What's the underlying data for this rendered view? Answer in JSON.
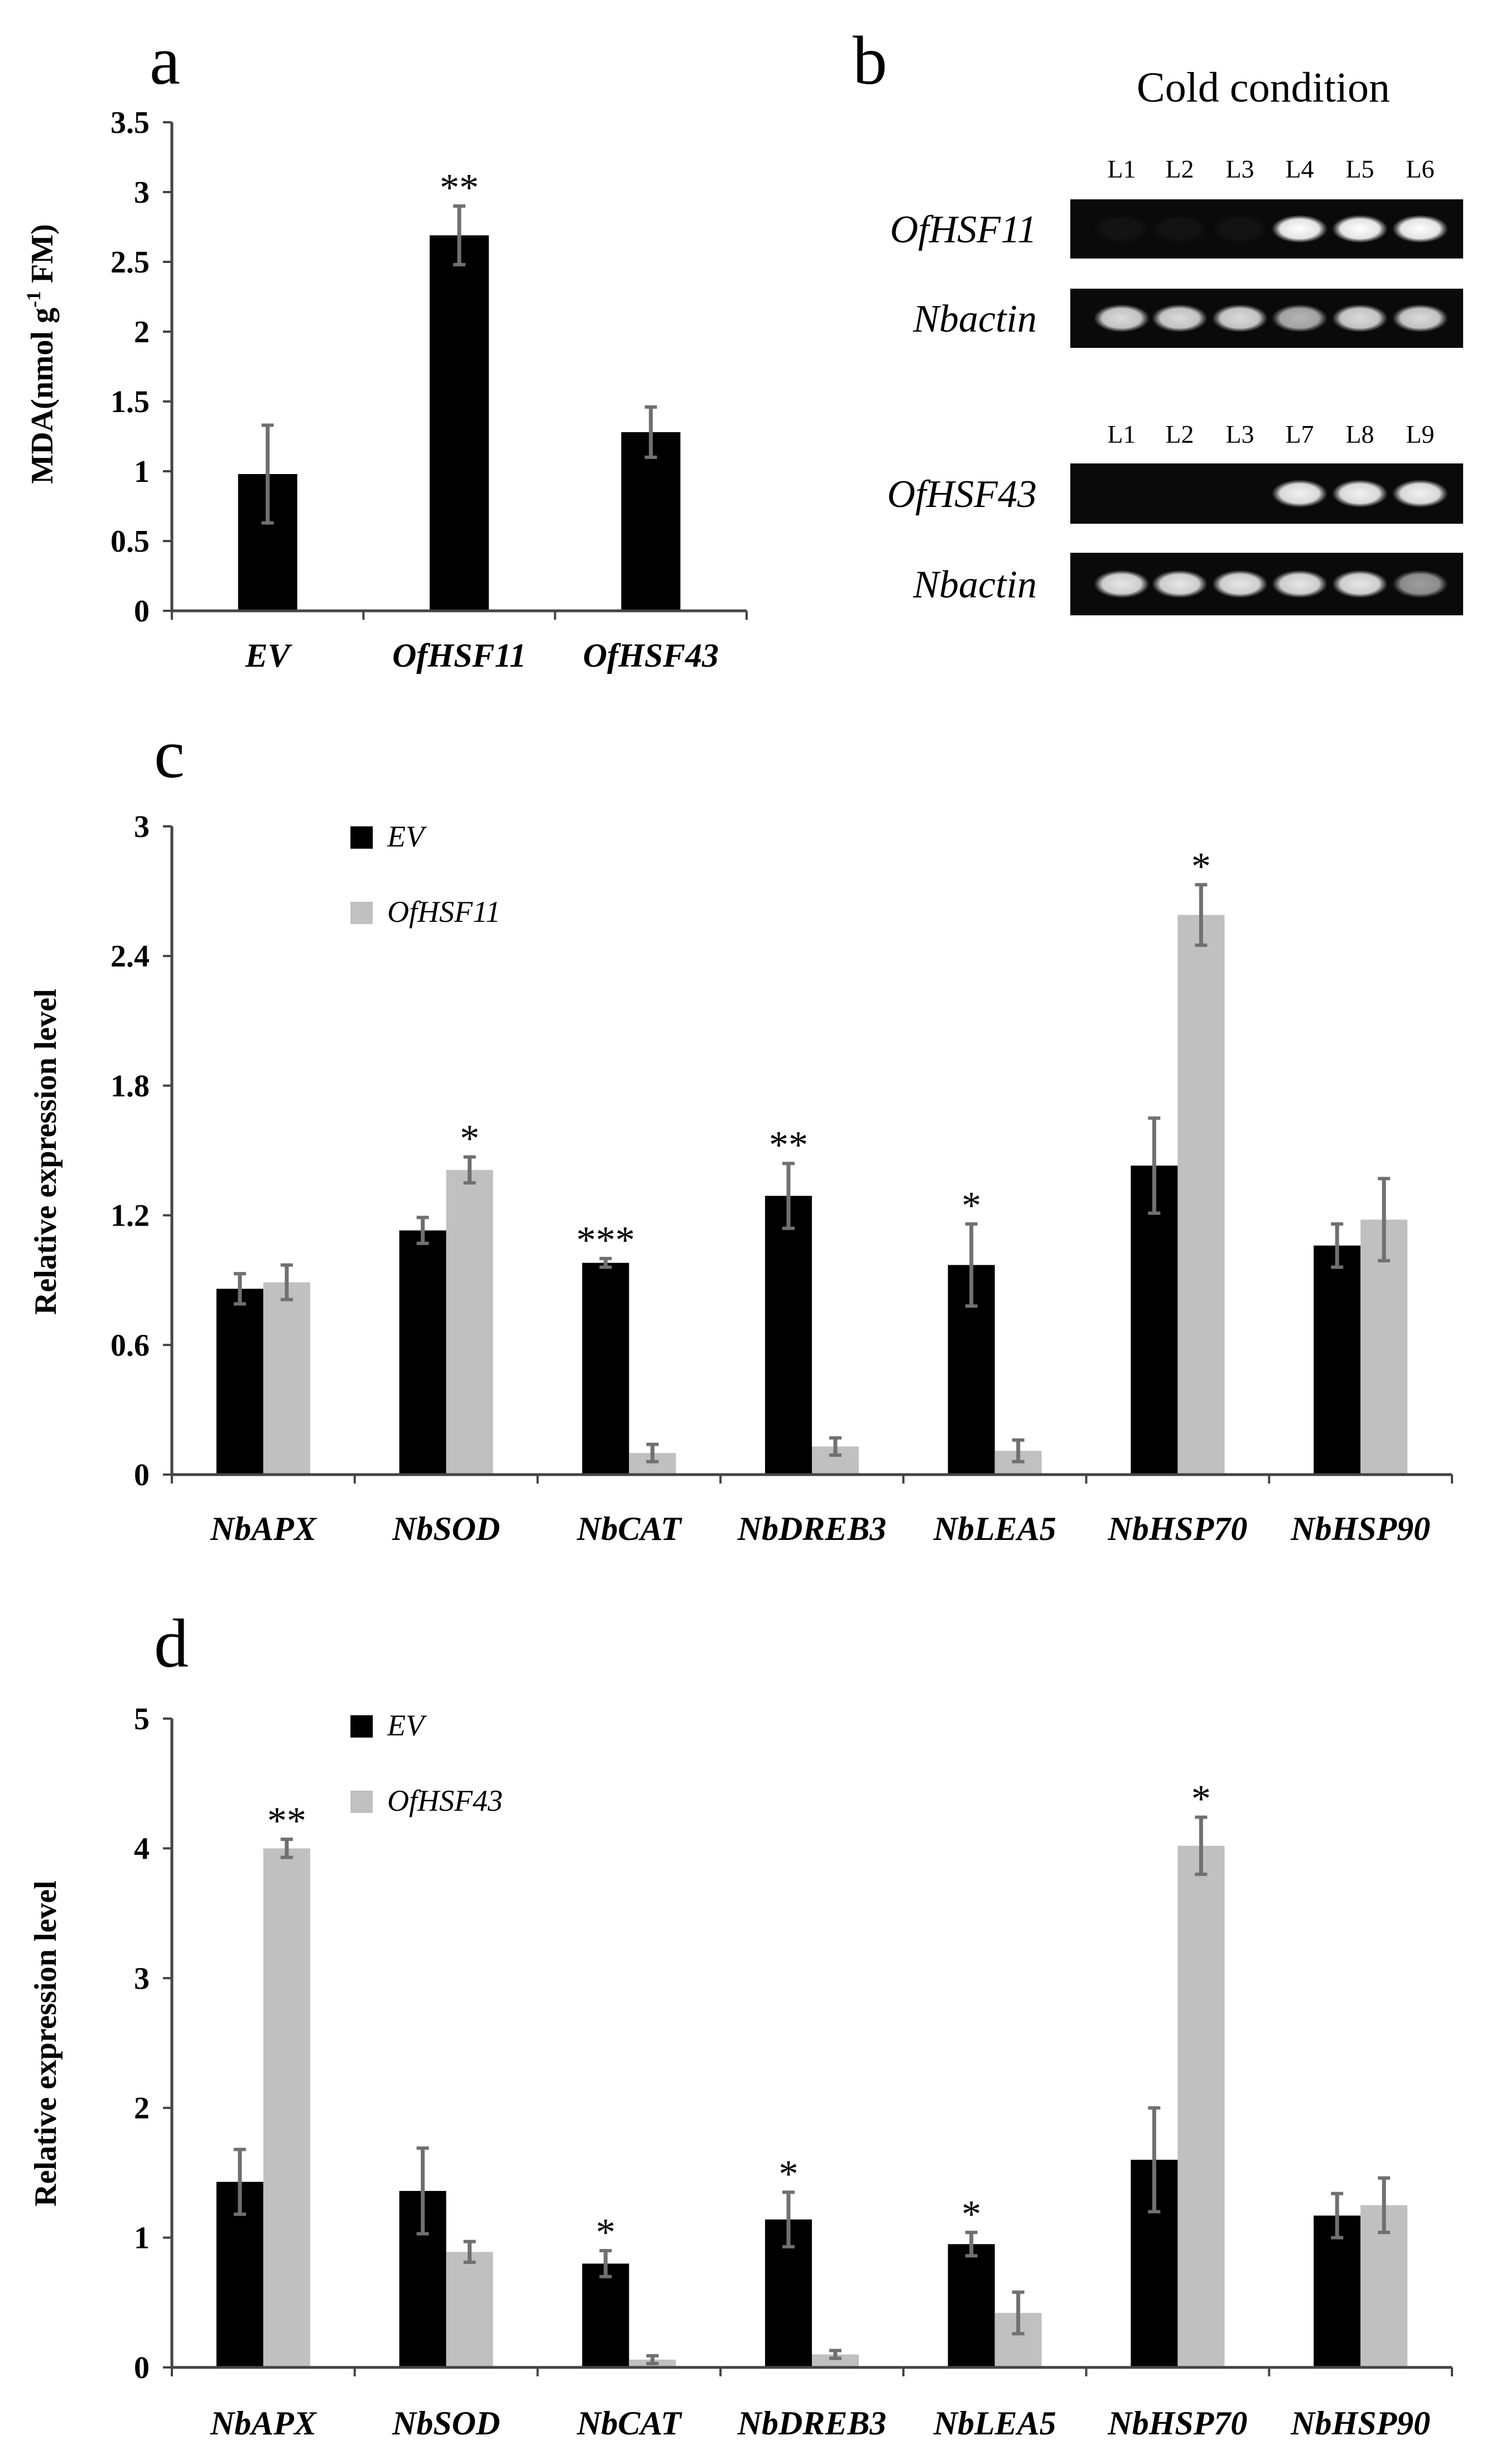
{
  "chart_data": [
    {
      "panel": "a",
      "type": "bar",
      "ylabel": "MDA(nmol g",
      "ylabel_sup": "-1",
      "ylabel_tail": " FM)",
      "ylim": [
        0,
        3.5
      ],
      "yticks": [
        "0",
        "0.5",
        "1",
        "1.5",
        "2",
        "2.5",
        "3",
        "3.5"
      ],
      "categories": [
        "EV",
        "OfHSF11",
        "OfHSF43"
      ],
      "series": [
        {
          "name": "MDA",
          "values": [
            0.98,
            2.69,
            1.28
          ],
          "errors": [
            0.35,
            0.21,
            0.18
          ],
          "significance": [
            "",
            "**",
            ""
          ],
          "color": "#000000"
        }
      ]
    },
    {
      "panel": "b",
      "type": "gel",
      "title": "Cold condition",
      "blocks": [
        {
          "lanes": [
            "L1",
            "L2",
            "L3",
            "L4",
            "L5",
            "L6"
          ],
          "rows": [
            {
              "gene": "OfHSF11",
              "intensities": [
                0.04,
                0.04,
                0.04,
                1.0,
                1.0,
                1.0
              ]
            },
            {
              "gene": "Nbactin",
              "intensities": [
                0.85,
                0.85,
                0.85,
                0.7,
                0.85,
                0.85
              ]
            }
          ]
        },
        {
          "lanes": [
            "L1",
            "L2",
            "L3",
            "L7",
            "L8",
            "L9"
          ],
          "rows": [
            {
              "gene": "OfHSF43",
              "intensities": [
                0.0,
                0.0,
                0.0,
                0.95,
                0.95,
                0.95
              ]
            },
            {
              "gene": "Nbactin",
              "intensities": [
                0.9,
                0.9,
                0.9,
                0.9,
                0.9,
                0.6
              ]
            }
          ]
        }
      ]
    },
    {
      "panel": "c",
      "type": "bar",
      "ylabel": "Relative expression level",
      "ylim": [
        0,
        3
      ],
      "yticks": [
        "0",
        "0.6",
        "1.2",
        "1.8",
        "2.4",
        "3"
      ],
      "categories": [
        "NbAPX",
        "NbSOD",
        "NbCAT",
        "NbDREB3",
        "NbLEA5",
        "NbHSP70",
        "NbHSP90"
      ],
      "series": [
        {
          "name": "EV",
          "values": [
            0.86,
            1.13,
            0.98,
            1.29,
            0.97,
            1.43,
            1.06
          ],
          "errors": [
            0.07,
            0.06,
            0.02,
            0.15,
            0.19,
            0.22,
            0.1
          ],
          "significance": [
            "",
            "",
            "***",
            "**",
            "*",
            "",
            ""
          ],
          "color": "#000000"
        },
        {
          "name": "OfHSF11",
          "values": [
            0.89,
            1.41,
            0.1,
            0.13,
            0.11,
            2.59,
            1.18
          ],
          "errors": [
            0.08,
            0.06,
            0.04,
            0.04,
            0.05,
            0.14,
            0.19
          ],
          "significance": [
            "",
            "*",
            "",
            "",
            "",
            "*",
            ""
          ],
          "color": "#c0c0c0"
        }
      ]
    },
    {
      "panel": "d",
      "type": "bar",
      "ylabel": "Relative expression level",
      "ylim": [
        0,
        5
      ],
      "yticks": [
        "0",
        "1",
        "2",
        "3",
        "4",
        "5"
      ],
      "categories": [
        "NbAPX",
        "NbSOD",
        "NbCAT",
        "NbDREB3",
        "NbLEA5",
        "NbHSP70",
        "NbHSP90"
      ],
      "series": [
        {
          "name": "EV",
          "values": [
            1.43,
            1.36,
            0.8,
            1.14,
            0.95,
            1.6,
            1.17
          ],
          "errors": [
            0.25,
            0.33,
            0.1,
            0.21,
            0.09,
            0.4,
            0.17
          ],
          "significance": [
            "",
            "",
            "*",
            "*",
            "*",
            "",
            ""
          ],
          "color": "#000000"
        },
        {
          "name": "OfHSF43",
          "values": [
            4.0,
            0.89,
            0.06,
            0.1,
            0.42,
            4.02,
            1.25
          ],
          "errors": [
            0.07,
            0.08,
            0.03,
            0.03,
            0.16,
            0.22,
            0.21
          ],
          "significance": [
            "**",
            "",
            "",
            "",
            "",
            "*",
            ""
          ],
          "color": "#c0c0c0"
        }
      ]
    }
  ]
}
